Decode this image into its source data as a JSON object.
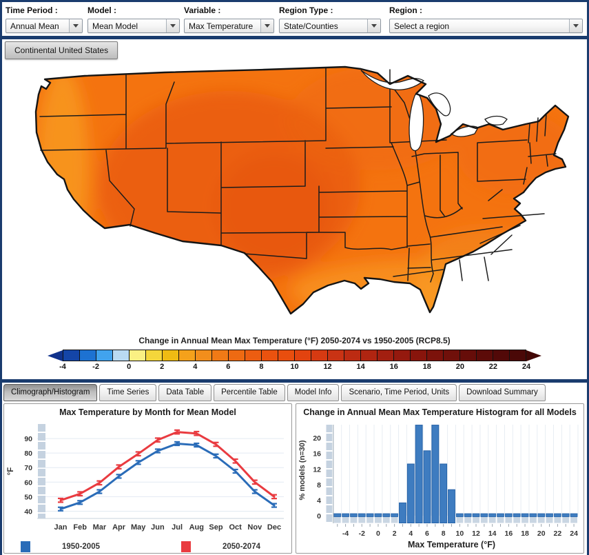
{
  "toolbar": {
    "controls": [
      {
        "id": "time-period",
        "label": "Time Period :",
        "value": "Annual Mean"
      },
      {
        "id": "model",
        "label": "Model :",
        "value": "Mean Model"
      },
      {
        "id": "variable",
        "label": "Variable :",
        "value": "Max Temperature"
      },
      {
        "id": "region-type",
        "label": "Region Type :",
        "value": "State/Counties"
      },
      {
        "id": "region",
        "label": "Region :",
        "value": "Select a region"
      }
    ]
  },
  "map_section": {
    "region_tab": "Continental United States",
    "caption": "Change in Annual Mean Max Temperature (°F) 2050-2074 vs 1950-2005 (RCP8.5)",
    "colorbar": {
      "tick_labels": [
        "-4",
        "-2",
        "0",
        "2",
        "4",
        "6",
        "8",
        "10",
        "12",
        "14",
        "16",
        "18",
        "20",
        "22",
        "24"
      ],
      "cell_colors": [
        "#1445A8",
        "#1D72D2",
        "#41A3EE",
        "#B9DAF2",
        "#FAF083",
        "#F4D63B",
        "#EFBB13",
        "#F5A11B",
        "#F28E1C",
        "#F07A16",
        "#EE6A12",
        "#EC5D11",
        "#EA520F",
        "#E94E0E",
        "#E2430F",
        "#D63A12",
        "#C93314",
        "#BC2B12",
        "#B02511",
        "#A21F10",
        "#95190E",
        "#88150C",
        "#7C120B",
        "#70100A",
        "#660D09",
        "#5C0B08",
        "#520908",
        "#4A0807"
      ],
      "left_arrow_color": "#10328C",
      "right_arrow_color": "#420705"
    }
  },
  "tabs": [
    {
      "label": "Climograph/Histogram",
      "active": true
    },
    {
      "label": "Time Series",
      "active": false
    },
    {
      "label": "Data Table",
      "active": false
    },
    {
      "label": "Percentile Table",
      "active": false
    },
    {
      "label": "Model Info",
      "active": false
    },
    {
      "label": "Scenario, Time Period, Units",
      "active": false
    },
    {
      "label": "Download Summary",
      "active": false
    }
  ],
  "chart_data": [
    {
      "type": "line",
      "title": "Max Temperature by Month for Mean Model",
      "ylabel": "°F",
      "categories": [
        "Jan",
        "Feb",
        "Mar",
        "Apr",
        "May",
        "Jun",
        "Jul",
        "Aug",
        "Sep",
        "Oct",
        "Nov",
        "Dec"
      ],
      "yticks": [
        40,
        50,
        60,
        70,
        80,
        90
      ],
      "ylim": [
        35,
        100
      ],
      "grid": true,
      "legend_position": "bottom",
      "series": [
        {
          "name": "1950-2005",
          "color": "#2A6CB8",
          "values": [
            41.5,
            46,
            53.5,
            64,
            73.5,
            81.5,
            86.5,
            85.5,
            78,
            67.5,
            53.5,
            44
          ],
          "error": 1.2
        },
        {
          "name": "2050-2074",
          "color": "#E93B40",
          "values": [
            47.5,
            52,
            59.5,
            70.5,
            79.5,
            89,
            94.5,
            93.5,
            86,
            74.5,
            60,
            50
          ],
          "error": 1.3
        }
      ]
    },
    {
      "type": "bar",
      "title": "Change in Annual Mean Max Temperature Histogram for all Models",
      "xlabel": "Max Temperature (°F)",
      "ylabel": "% models (n=30)",
      "bin_start": -5,
      "bin_width": 1,
      "values": [
        0,
        0,
        0,
        0,
        0,
        0,
        0,
        0,
        3.3,
        13.3,
        23.3,
        16.7,
        23.3,
        13.3,
        6.7,
        0,
        0,
        0,
        0,
        0,
        0,
        0,
        0,
        0,
        0,
        0,
        0,
        0,
        0,
        0
      ],
      "yticks": [
        0,
        4,
        8,
        12,
        16,
        20
      ],
      "xticks": [
        -4,
        -2,
        0,
        2,
        4,
        6,
        8,
        10,
        12,
        14,
        16,
        18,
        20,
        22,
        24
      ],
      "ylim": [
        0,
        23.4
      ],
      "grid": true,
      "bar_color": "#3E7CC0",
      "bar_border": "#2763A8"
    }
  ]
}
